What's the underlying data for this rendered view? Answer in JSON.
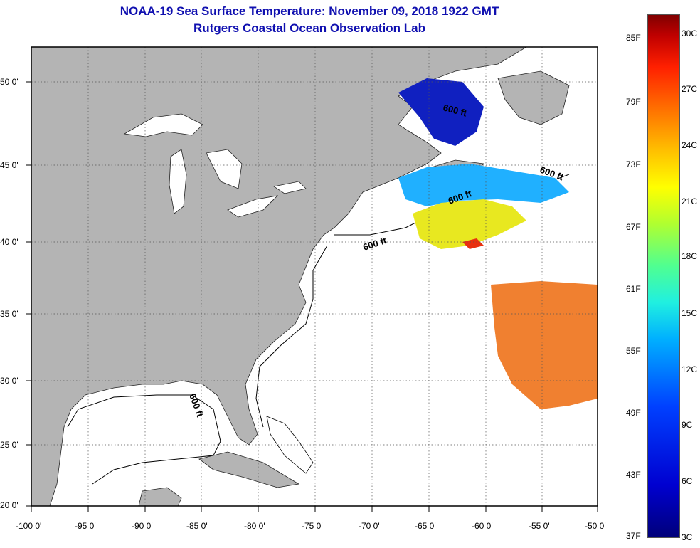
{
  "title": {
    "line1": "NOAA-19 Sea Surface Temperature:  November 09, 2018 1922 GMT",
    "line2": "Rutgers Coastal Ocean Observation Lab"
  },
  "map": {
    "lat_ticks": [
      "50 0'",
      "45 0'",
      "40 0'",
      "35 0'",
      "30 0'",
      "25 0'",
      "20 0'"
    ],
    "lon_ticks": [
      "-100 0'",
      "-95 0'",
      "-90 0'",
      "-85 0'",
      "-80 0'",
      "-75 0'",
      "-70 0'",
      "-65 0'",
      "-60 0'",
      "-55 0'",
      "-50 0'"
    ],
    "contour_labels": [
      "600 ft",
      "600 ft",
      "600 ft",
      "600 ft",
      "600 ft"
    ],
    "colors": {
      "land": "#b4b4b4",
      "water": "#ffffff",
      "title": "#1010b0"
    }
  },
  "colorbar": {
    "fahrenheit_labels": [
      "85F",
      "79F",
      "73F",
      "67F",
      "61F",
      "55F",
      "49F",
      "43F",
      "37F"
    ],
    "celsius_labels": [
      "30C",
      "27C",
      "24C",
      "21C",
      "18C",
      "15C",
      "12C",
      "9C",
      "6C",
      "3C"
    ]
  }
}
